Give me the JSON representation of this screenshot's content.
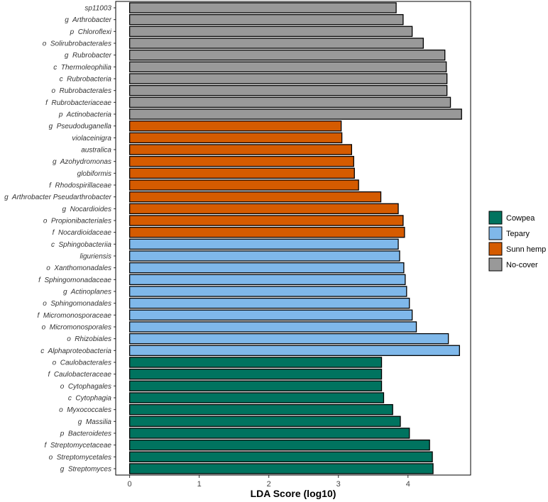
{
  "chart_data": {
    "type": "bar",
    "orientation": "horizontal",
    "title": "",
    "xlabel": "LDA Score (log10)",
    "ylabel": "",
    "xlim": [
      -0.2,
      4.9
    ],
    "xticks": [
      0,
      1,
      2,
      3,
      4
    ],
    "grid": false,
    "legend_position": "right",
    "legend": [
      {
        "name": "Cowpea",
        "color": "#00735F"
      },
      {
        "name": "Tepary",
        "color": "#7FB8EA"
      },
      {
        "name": "Sunn hemp",
        "color": "#D55B00"
      },
      {
        "name": "No-cover",
        "color": "#999999"
      }
    ],
    "bars": [
      {
        "label": "sp11003",
        "value": 3.83,
        "group": "No-cover"
      },
      {
        "label": "g  Arthrobacter",
        "value": 3.93,
        "group": "No-cover"
      },
      {
        "label": "p  Chloroflexi",
        "value": 4.06,
        "group": "No-cover"
      },
      {
        "label": "o  Solirubrobacterales",
        "value": 4.22,
        "group": "No-cover"
      },
      {
        "label": "g  Rubrobacter",
        "value": 4.53,
        "group": "No-cover"
      },
      {
        "label": "c  Thermoleophilia",
        "value": 4.55,
        "group": "No-cover"
      },
      {
        "label": "c  Rubrobacteria",
        "value": 4.56,
        "group": "No-cover"
      },
      {
        "label": "o  Rubrobacterales",
        "value": 4.56,
        "group": "No-cover"
      },
      {
        "label": "f  Rubrobacteriaceae",
        "value": 4.61,
        "group": "No-cover"
      },
      {
        "label": "p  Actinobacteria",
        "value": 4.77,
        "group": "No-cover"
      },
      {
        "label": "g  Pseudoduganella",
        "value": 3.04,
        "group": "Sunn hemp"
      },
      {
        "label": "violaceinigra",
        "value": 3.05,
        "group": "Sunn hemp"
      },
      {
        "label": "australica",
        "value": 3.19,
        "group": "Sunn hemp"
      },
      {
        "label": "g  Azohydromonas",
        "value": 3.22,
        "group": "Sunn hemp"
      },
      {
        "label": "globiformis",
        "value": 3.23,
        "group": "Sunn hemp"
      },
      {
        "label": "f  Rhodospirillaceae",
        "value": 3.29,
        "group": "Sunn hemp"
      },
      {
        "label": "g  Arthrobacter Pseudarthrobacter",
        "value": 3.61,
        "group": "Sunn hemp"
      },
      {
        "label": "g  Nocardioides",
        "value": 3.86,
        "group": "Sunn hemp"
      },
      {
        "label": "o  Propionibacteriales",
        "value": 3.93,
        "group": "Sunn hemp"
      },
      {
        "label": "f  Nocardioidaceae",
        "value": 3.95,
        "group": "Sunn hemp"
      },
      {
        "label": "c  Sphingobacteriia",
        "value": 3.86,
        "group": "Tepary"
      },
      {
        "label": "liguriensis",
        "value": 3.88,
        "group": "Tepary"
      },
      {
        "label": "o  Xanthomonadales",
        "value": 3.94,
        "group": "Tepary"
      },
      {
        "label": "f  Sphingomonadaceae",
        "value": 3.96,
        "group": "Tepary"
      },
      {
        "label": "g  Actinoplanes",
        "value": 3.98,
        "group": "Tepary"
      },
      {
        "label": "o  Sphingomonadales",
        "value": 4.02,
        "group": "Tepary"
      },
      {
        "label": "f  Micromonosporaceae",
        "value": 4.06,
        "group": "Tepary"
      },
      {
        "label": "o  Micromonosporales",
        "value": 4.12,
        "group": "Tepary"
      },
      {
        "label": "o  Rhizobiales",
        "value": 4.58,
        "group": "Tepary"
      },
      {
        "label": "c  Alphaproteobacteria",
        "value": 4.74,
        "group": "Tepary"
      },
      {
        "label": "o  Caulobacterales",
        "value": 3.62,
        "group": "Cowpea"
      },
      {
        "label": "f  Caulobacteraceae",
        "value": 3.62,
        "group": "Cowpea"
      },
      {
        "label": "o  Cytophagales",
        "value": 3.62,
        "group": "Cowpea"
      },
      {
        "label": "c  Cytophagia",
        "value": 3.65,
        "group": "Cowpea"
      },
      {
        "label": "o  Myxococcales",
        "value": 3.78,
        "group": "Cowpea"
      },
      {
        "label": "g  Massilia",
        "value": 3.89,
        "group": "Cowpea"
      },
      {
        "label": "p  Bacteroidetes",
        "value": 4.02,
        "group": "Cowpea"
      },
      {
        "label": "f  Streptomycetaceae",
        "value": 4.31,
        "group": "Cowpea"
      },
      {
        "label": "o  Streptomycetales",
        "value": 4.35,
        "group": "Cowpea"
      },
      {
        "label": "g  Streptomyces",
        "value": 4.36,
        "group": "Cowpea"
      }
    ]
  }
}
